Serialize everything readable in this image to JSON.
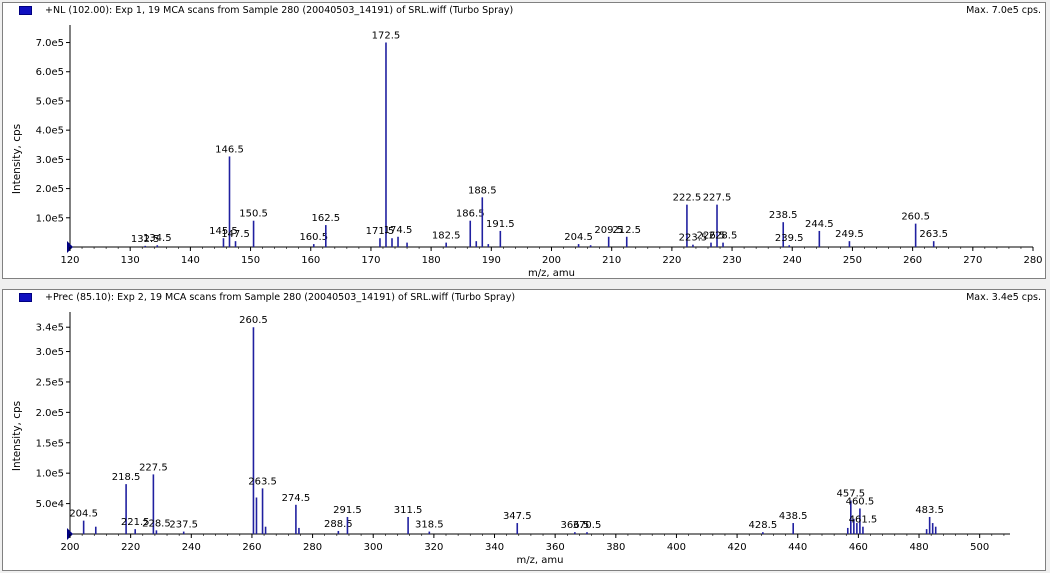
{
  "chart_data": [
    {
      "type": "bar",
      "title": "+NL (102.00): Exp 1, 19 MCA scans from Sample 280 (20040503_14191) of SRL.wiff (Turbo Spray)",
      "max_label": "Max. 7.0e5 cps.",
      "xlabel": "m/z, amu",
      "ylabel": "Intensity, cps",
      "xlim": [
        120,
        280
      ],
      "ylim": [
        0,
        760000
      ],
      "xticks": [
        120,
        130,
        140,
        150,
        160,
        170,
        180,
        190,
        200,
        210,
        220,
        230,
        240,
        250,
        260,
        270,
        280
      ],
      "yticks": [
        {
          "v": 100000,
          "label": "1.0e5"
        },
        {
          "v": 200000,
          "label": "2.0e5"
        },
        {
          "v": 300000,
          "label": "3.0e5"
        },
        {
          "v": 400000,
          "label": "4.0e5"
        },
        {
          "v": 500000,
          "label": "5.0e5"
        },
        {
          "v": 600000,
          "label": "6.0e5"
        },
        {
          "v": 700000,
          "label": "7.0e5"
        }
      ],
      "peaks": [
        {
          "x": 132.5,
          "y": 4000,
          "label": "132.5"
        },
        {
          "x": 134.5,
          "y": 6000,
          "label": "134.5"
        },
        {
          "x": 145.5,
          "y": 30000,
          "label": "145.5"
        },
        {
          "x": 146.5,
          "y": 310000,
          "label": "146.5"
        },
        {
          "x": 147.5,
          "y": 20000,
          "label": "147.5"
        },
        {
          "x": 150.5,
          "y": 90000,
          "label": "150.5"
        },
        {
          "x": 160.5,
          "y": 10000,
          "label": "160.5"
        },
        {
          "x": 162.5,
          "y": 75000,
          "label": "162.5"
        },
        {
          "x": 171.5,
          "y": 30000,
          "label": "171.5"
        },
        {
          "x": 172.5,
          "y": 700000,
          "label": "172.5"
        },
        {
          "x": 173.5,
          "y": 30000,
          "label": ""
        },
        {
          "x": 174.5,
          "y": 35000,
          "label": "174.5"
        },
        {
          "x": 176.0,
          "y": 15000,
          "label": ""
        },
        {
          "x": 182.5,
          "y": 15000,
          "label": "182.5"
        },
        {
          "x": 186.5,
          "y": 90000,
          "label": "186.5"
        },
        {
          "x": 187.5,
          "y": 20000,
          "label": ""
        },
        {
          "x": 188.5,
          "y": 170000,
          "label": "188.5"
        },
        {
          "x": 189.5,
          "y": 10000,
          "label": ""
        },
        {
          "x": 191.5,
          "y": 55000,
          "label": "191.5"
        },
        {
          "x": 204.5,
          "y": 10000,
          "label": "204.5"
        },
        {
          "x": 206.5,
          "y": 6000,
          "label": ""
        },
        {
          "x": 209.5,
          "y": 35000,
          "label": "209.5"
        },
        {
          "x": 212.5,
          "y": 35000,
          "label": "212.5"
        },
        {
          "x": 222.5,
          "y": 145000,
          "label": "222.5"
        },
        {
          "x": 223.5,
          "y": 8000,
          "label": "223.5"
        },
        {
          "x": 226.5,
          "y": 15000,
          "label": "226.5"
        },
        {
          "x": 227.5,
          "y": 145000,
          "label": "227.5"
        },
        {
          "x": 228.5,
          "y": 15000,
          "label": "228.5"
        },
        {
          "x": 238.5,
          "y": 85000,
          "label": "238.5"
        },
        {
          "x": 239.5,
          "y": 6000,
          "label": "239.5"
        },
        {
          "x": 244.5,
          "y": 55000,
          "label": "244.5"
        },
        {
          "x": 249.5,
          "y": 20000,
          "label": "249.5"
        },
        {
          "x": 260.5,
          "y": 80000,
          "label": "260.5"
        },
        {
          "x": 263.5,
          "y": 20000,
          "label": "263.5"
        }
      ]
    },
    {
      "type": "bar",
      "title": "+Prec (85.10): Exp 2, 19 MCA scans from Sample 280 (20040503_14191) of SRL.wiff (Turbo Spray)",
      "max_label": "Max. 3.4e5 cps.",
      "xlabel": "m/z, amu",
      "ylabel": "Intensity, cps",
      "xlim": [
        200,
        510
      ],
      "ylim": [
        0,
        365000
      ],
      "xticks": [
        200,
        220,
        240,
        260,
        280,
        300,
        320,
        340,
        360,
        380,
        400,
        420,
        440,
        460,
        480,
        500
      ],
      "yticks": [
        {
          "v": 50000,
          "label": "5.0e4"
        },
        {
          "v": 100000,
          "label": "1.0e5"
        },
        {
          "v": 150000,
          "label": "1.5e5"
        },
        {
          "v": 200000,
          "label": "2.0e5"
        },
        {
          "v": 250000,
          "label": "2.5e5"
        },
        {
          "v": 300000,
          "label": "3.0e5"
        },
        {
          "v": 340000,
          "label": "3.4e5"
        }
      ],
      "peaks": [
        {
          "x": 204.5,
          "y": 22000,
          "label": "204.5"
        },
        {
          "x": 208.5,
          "y": 12000,
          "label": ""
        },
        {
          "x": 218.5,
          "y": 82000,
          "label": "218.5"
        },
        {
          "x": 221.5,
          "y": 8000,
          "label": "221.5"
        },
        {
          "x": 227.5,
          "y": 98000,
          "label": "227.5"
        },
        {
          "x": 228.5,
          "y": 6000,
          "label": "228.5"
        },
        {
          "x": 237.5,
          "y": 4000,
          "label": "237.5"
        },
        {
          "x": 260.5,
          "y": 340000,
          "label": "260.5"
        },
        {
          "x": 261.5,
          "y": 60000,
          "label": ""
        },
        {
          "x": 263.5,
          "y": 75000,
          "label": "263.5"
        },
        {
          "x": 264.5,
          "y": 12000,
          "label": ""
        },
        {
          "x": 274.5,
          "y": 48000,
          "label": "274.5"
        },
        {
          "x": 275.5,
          "y": 10000,
          "label": ""
        },
        {
          "x": 288.5,
          "y": 5000,
          "label": "288.5"
        },
        {
          "x": 291.5,
          "y": 28000,
          "label": "291.5"
        },
        {
          "x": 311.5,
          "y": 28000,
          "label": "311.5"
        },
        {
          "x": 318.5,
          "y": 4000,
          "label": "318.5"
        },
        {
          "x": 347.5,
          "y": 18000,
          "label": "347.5"
        },
        {
          "x": 366.5,
          "y": 3000,
          "label": "366.5"
        },
        {
          "x": 370.5,
          "y": 3000,
          "label": "370.5"
        },
        {
          "x": 428.5,
          "y": 3000,
          "label": "428.5"
        },
        {
          "x": 438.5,
          "y": 18000,
          "label": "438.5"
        },
        {
          "x": 456.5,
          "y": 10000,
          "label": ""
        },
        {
          "x": 457.5,
          "y": 55000,
          "label": "457.5"
        },
        {
          "x": 458.5,
          "y": 25000,
          "label": ""
        },
        {
          "x": 459.5,
          "y": 18000,
          "label": ""
        },
        {
          "x": 460.5,
          "y": 42000,
          "label": "460.5"
        },
        {
          "x": 461.5,
          "y": 12000,
          "label": "461.5"
        },
        {
          "x": 482.5,
          "y": 8000,
          "label": ""
        },
        {
          "x": 483.5,
          "y": 28000,
          "label": "483.5"
        },
        {
          "x": 484.5,
          "y": 18000,
          "label": ""
        },
        {
          "x": 485.5,
          "y": 12000,
          "label": ""
        }
      ]
    }
  ],
  "colors": {
    "peak": "#2020a0",
    "axis": "#000000",
    "origin_marker": "#000080",
    "legend_box": "#1010c0"
  }
}
